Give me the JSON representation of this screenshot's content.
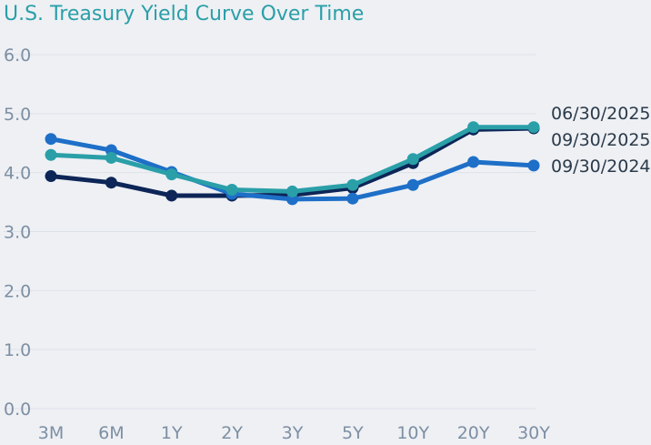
{
  "chart_data": {
    "type": "line",
    "title": "U.S. Treasury Yield Curve Over Time",
    "xlabel": "",
    "ylabel": "",
    "categories": [
      "3M",
      "6M",
      "1Y",
      "2Y",
      "3Y",
      "5Y",
      "10Y",
      "20Y",
      "30Y"
    ],
    "ylim": [
      0,
      6
    ],
    "yticks": [
      "0.0",
      "1.0",
      "2.0",
      "3.0",
      "4.0",
      "5.0",
      "6.0"
    ],
    "grid": true,
    "legend_placement": "right, at line ends",
    "series": [
      {
        "name": "09/30/2025",
        "color": "#0d2557",
        "values": [
          3.94,
          3.83,
          3.61,
          3.61,
          3.62,
          3.74,
          4.16,
          4.73,
          4.75
        ]
      },
      {
        "name": "09/30/2024",
        "color": "#1e6fc7",
        "values": [
          4.57,
          4.38,
          4.01,
          3.64,
          3.55,
          3.56,
          3.79,
          4.18,
          4.12
        ]
      },
      {
        "name": "06/30/2025",
        "color": "#2a9fa8",
        "values": [
          4.3,
          4.25,
          3.97,
          3.71,
          3.68,
          3.79,
          4.23,
          4.77,
          4.77
        ]
      }
    ],
    "legend_order": [
      "06/30/2025",
      "09/30/2025",
      "09/30/2024"
    ],
    "colors": {
      "title": "#2a9fa8",
      "tick": "#7d8fa3",
      "grid": "#dde2ea",
      "background": "#eef0f4"
    }
  }
}
